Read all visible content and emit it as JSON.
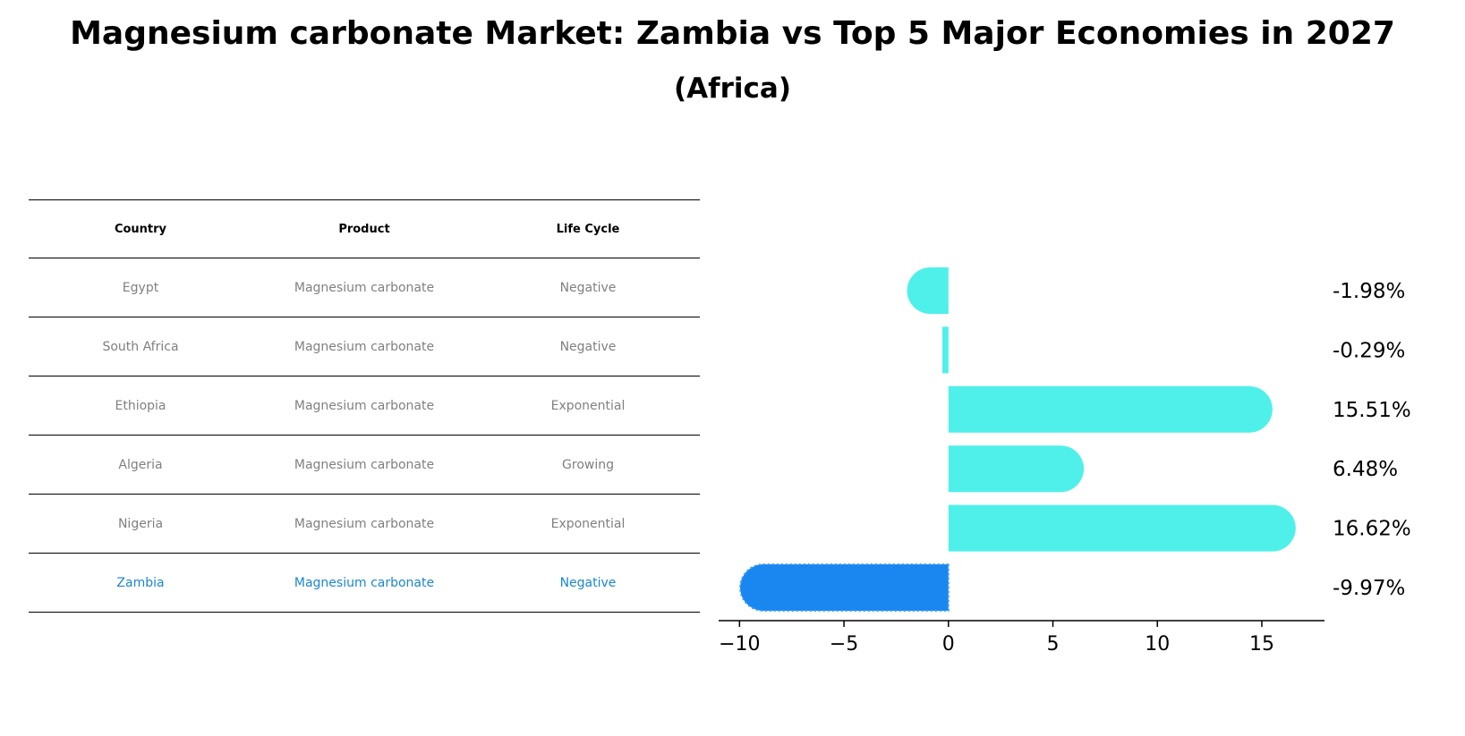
{
  "title": "Magnesium carbonate Market: Zambia vs Top 5 Major Economies in 2027",
  "subtitle": "(Africa)",
  "table": {
    "headers": [
      "Country",
      "Product",
      "Life Cycle"
    ],
    "rows": [
      {
        "country": "Egypt",
        "product": "Magnesium carbonate",
        "life_cycle": "Negative"
      },
      {
        "country": "South Africa",
        "product": "Magnesium carbonate",
        "life_cycle": "Negative"
      },
      {
        "country": "Ethiopia",
        "product": "Magnesium carbonate",
        "life_cycle": "Exponential"
      },
      {
        "country": "Algeria",
        "product": "Magnesium carbonate",
        "life_cycle": "Growing"
      },
      {
        "country": "Nigeria",
        "product": "Magnesium carbonate",
        "life_cycle": "Exponential"
      },
      {
        "country": "Zambia",
        "product": "Magnesium carbonate",
        "life_cycle": "Negative"
      }
    ],
    "highlight_row": "Zambia"
  },
  "chart_data": {
    "type": "bar",
    "orientation": "horizontal",
    "categories": [
      "Egypt",
      "South Africa",
      "Ethiopia",
      "Algeria",
      "Nigeria",
      "Zambia"
    ],
    "values": [
      -1.98,
      -0.29,
      15.51,
      6.48,
      16.62,
      -9.97
    ],
    "value_labels": [
      "-1.98%",
      "-0.29%",
      "15.51%",
      "6.48%",
      "16.62%",
      "-9.97%"
    ],
    "xlim": [
      -11,
      18
    ],
    "xticks": [
      -10,
      -5,
      0,
      5,
      10,
      15
    ],
    "xtick_labels": [
      "−10",
      "−5",
      "0",
      "5",
      "10",
      "15"
    ],
    "grid": false,
    "colors": {
      "default": "#4ff0ea",
      "highlight": "#1a86f0"
    }
  }
}
